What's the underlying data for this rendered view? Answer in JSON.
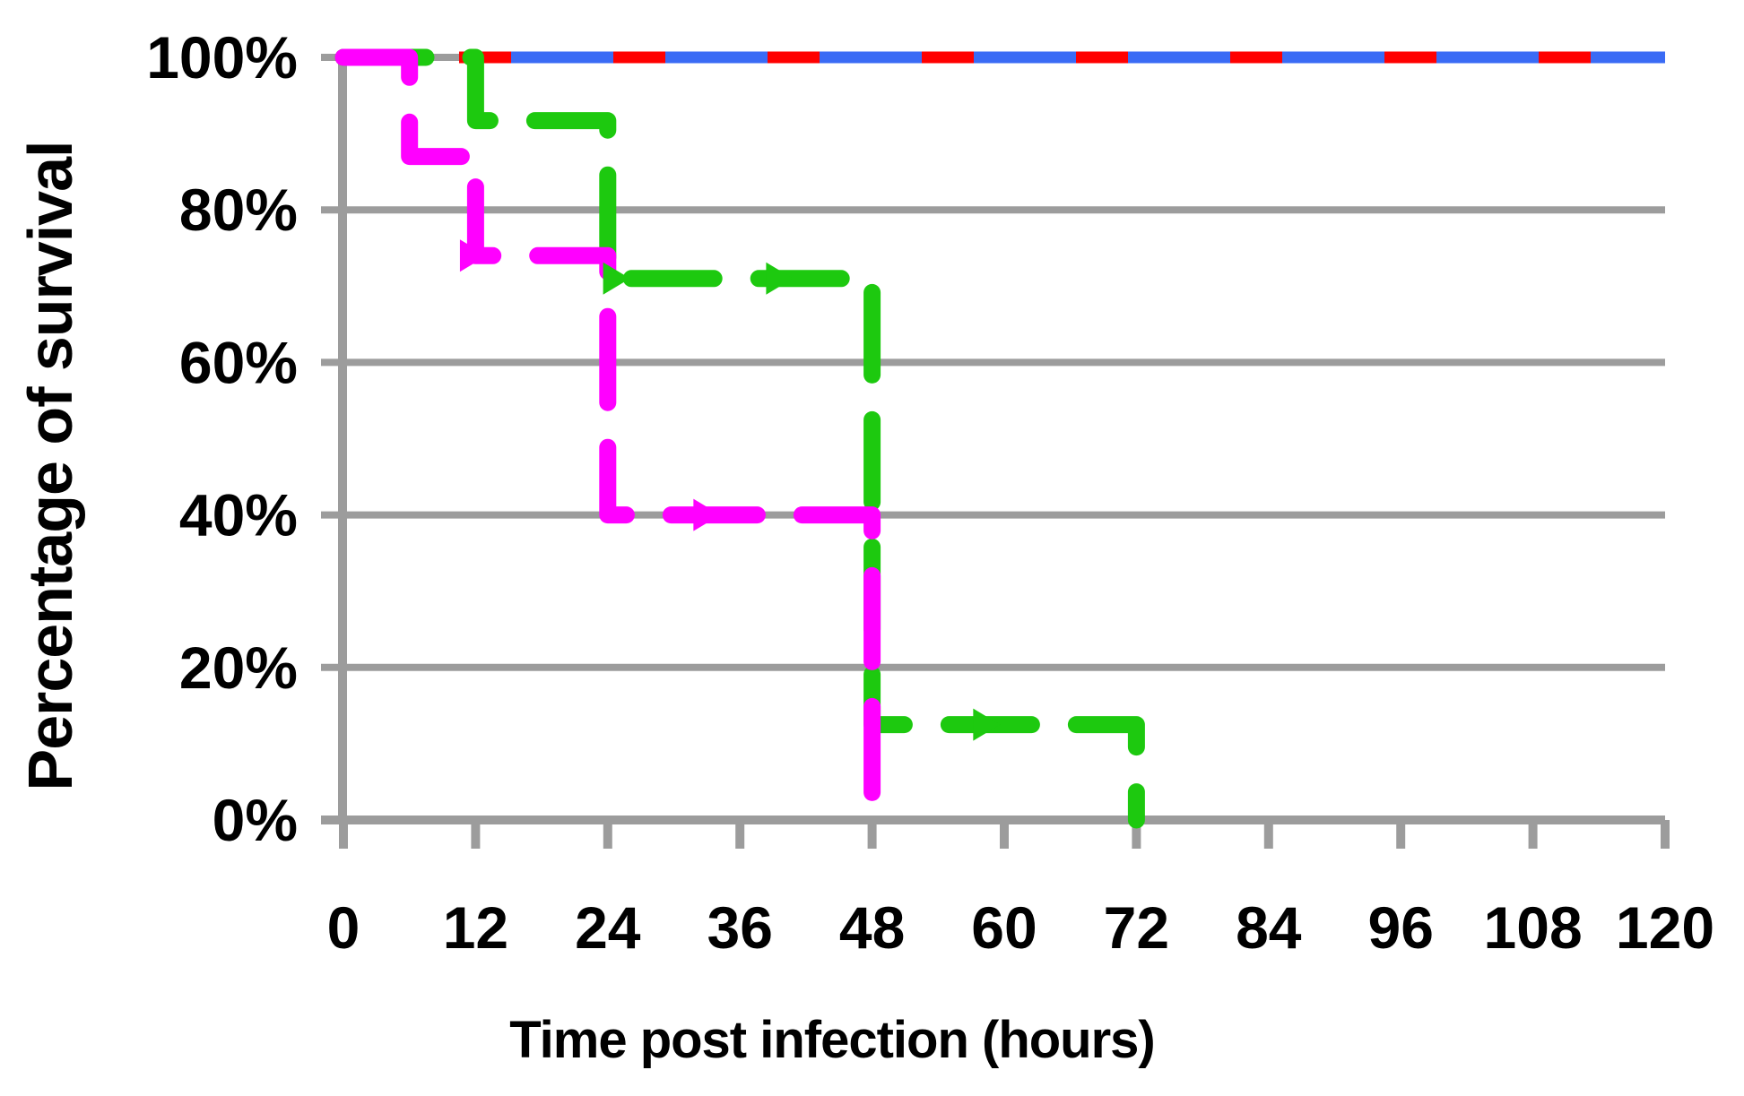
{
  "chart_data": {
    "type": "line",
    "subtype": "kaplan-meier-step-survival",
    "title": "",
    "xlabel": "Time post infection (hours)",
    "ylabel": "Percentage of survival",
    "x_ticks": [
      0,
      12,
      24,
      36,
      48,
      60,
      72,
      84,
      96,
      108,
      120
    ],
    "y_ticks": [
      0,
      20,
      40,
      60,
      80,
      100
    ],
    "xlim": [
      0,
      120
    ],
    "ylim": [
      0,
      100
    ],
    "grid": "horizontal-only",
    "legend": "none",
    "series": [
      {
        "name": "blue-100pct",
        "color": "#3A6BF5",
        "line_style": "solid-under-red-dashes",
        "points": [
          [
            0,
            100
          ],
          [
            120,
            100
          ]
        ]
      },
      {
        "name": "red-100pct",
        "color": "#FF0000",
        "line_style": "dashed",
        "points": [
          [
            0,
            100
          ],
          [
            120,
            100
          ]
        ]
      },
      {
        "name": "green-dashed",
        "color": "#1DC90F",
        "line_style": "dashed-round",
        "points": [
          [
            0,
            100
          ],
          [
            12,
            100
          ],
          [
            12,
            91.7
          ],
          [
            24,
            91.7
          ],
          [
            24,
            71
          ],
          [
            48,
            71
          ],
          [
            48,
            12.5
          ],
          [
            72,
            12.5
          ],
          [
            72,
            0
          ]
        ]
      },
      {
        "name": "magenta-dashed",
        "color": "#FF00FF",
        "line_style": "dashed-round",
        "points": [
          [
            0,
            100
          ],
          [
            6,
            100
          ],
          [
            6,
            87
          ],
          [
            12,
            87
          ],
          [
            12,
            74
          ],
          [
            24,
            74
          ],
          [
            24,
            40
          ],
          [
            48,
            40
          ],
          [
            48,
            0
          ]
        ]
      }
    ],
    "arrow_markers": [
      {
        "series": "magenta-dashed",
        "t": 11.8,
        "pct": 74
      },
      {
        "series": "magenta-dashed",
        "t": 33.0,
        "pct": 40
      },
      {
        "series": "green-dashed",
        "t": 24.8,
        "pct": 71
      },
      {
        "series": "green-dashed",
        "t": 39.6,
        "pct": 71
      },
      {
        "series": "green-dashed",
        "t": 58.4,
        "pct": 12.5
      }
    ]
  },
  "axis": {
    "x_tick_labels": [
      "0",
      "12",
      "24",
      "36",
      "48",
      "60",
      "72",
      "84",
      "96",
      "108",
      "120"
    ],
    "y_tick_labels": [
      "100%",
      "80%",
      "60%",
      "40%",
      "20%",
      "0%"
    ],
    "y_tick_values_top_down": [
      100,
      80,
      60,
      40,
      20,
      0
    ]
  },
  "colors": {
    "grid": "#9C9C9C",
    "axis": "#9C9C9C",
    "text": "#000000",
    "background": "#FFFFFF"
  }
}
